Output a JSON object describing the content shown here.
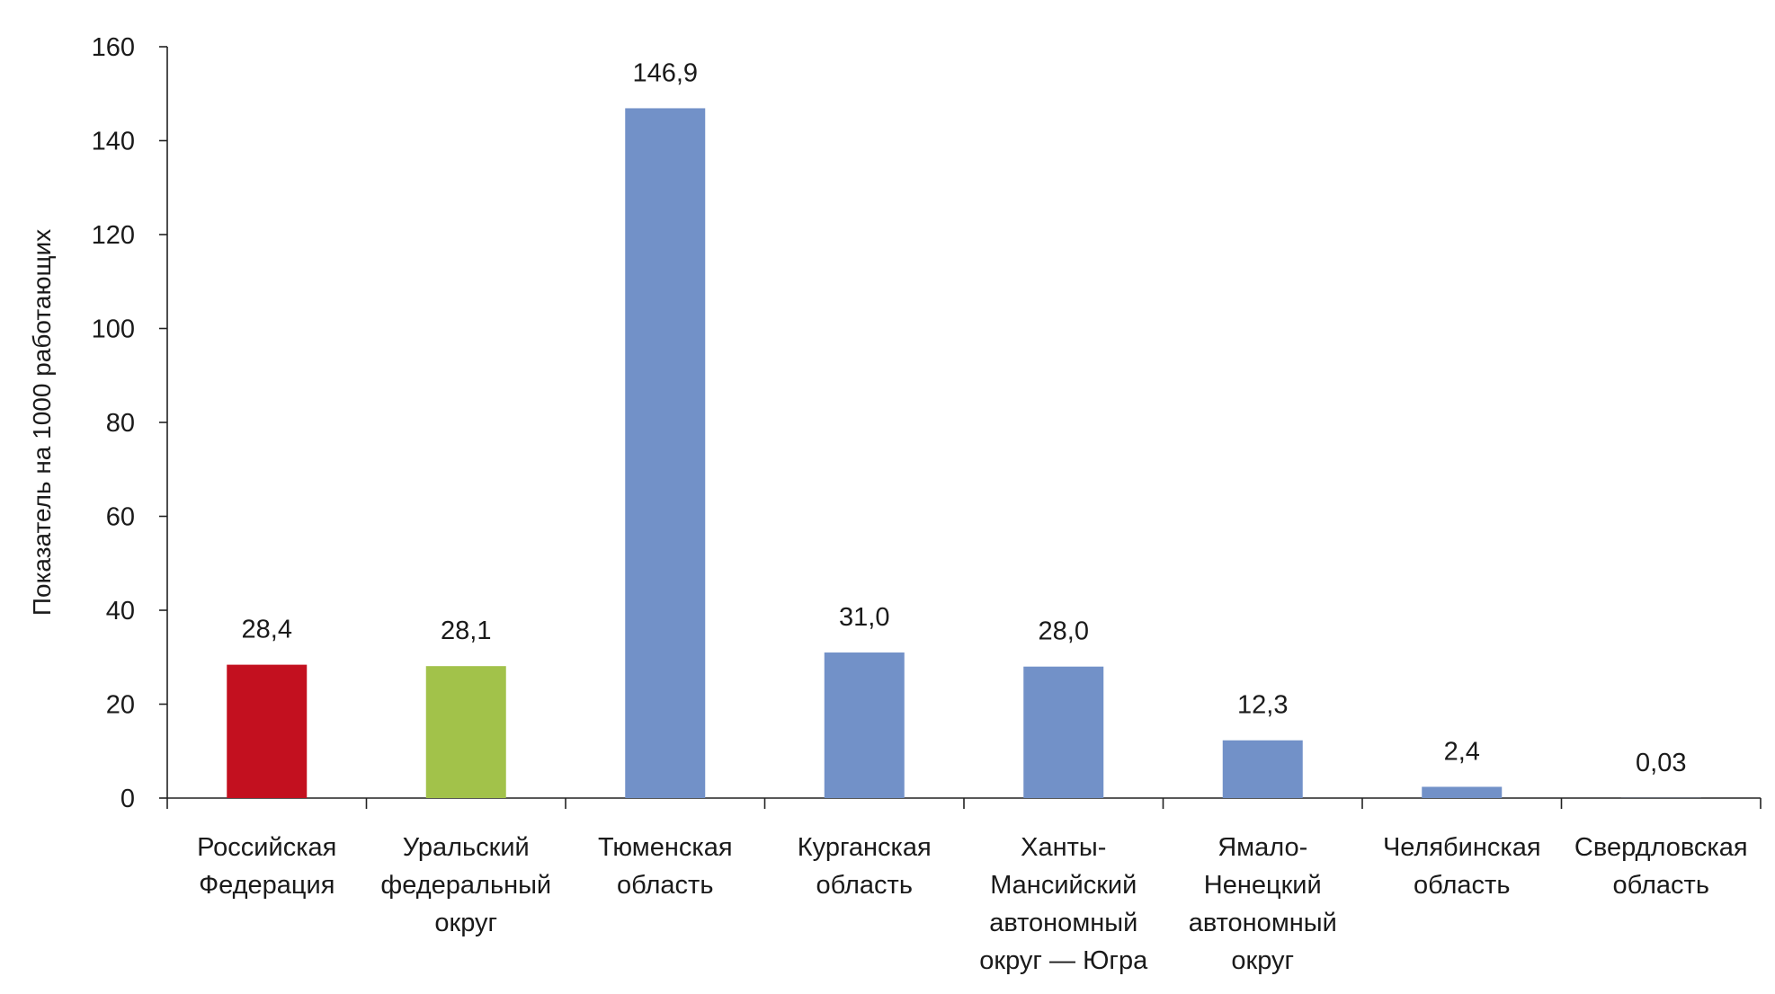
{
  "chart_data": {
    "type": "bar",
    "title": "",
    "xlabel": "",
    "ylabel": "Показатель на 1000 работающих",
    "ylim": [
      0,
      160
    ],
    "yticks": [
      "0",
      "20",
      "40",
      "60",
      "80",
      "100",
      "120",
      "140",
      "160"
    ],
    "grid": false,
    "categories": [
      [
        "Российская",
        "Федерация"
      ],
      [
        "Уральский",
        "федеральный",
        "округ"
      ],
      [
        "Тюменская",
        "область"
      ],
      [
        "Курганская",
        "область"
      ],
      [
        "Ханты-",
        "Мансийский",
        "автономный",
        "округ — Югра"
      ],
      [
        "Ямало-",
        "Ненецкий",
        "автономный",
        "округ"
      ],
      [
        "Челябинская",
        "область"
      ],
      [
        "Свердловская",
        "область"
      ]
    ],
    "values": [
      28.4,
      28.1,
      146.9,
      31.0,
      28.0,
      12.3,
      2.4,
      0.03
    ],
    "value_labels": [
      "28,4",
      "28,1",
      "146,9",
      "31,0",
      "28,0",
      "12,3",
      "2,4",
      "0,03"
    ],
    "colors": [
      "#c3101f",
      "#a2c24a",
      "#7291c8",
      "#7291c8",
      "#7291c8",
      "#7291c8",
      "#7291c8",
      "#7291c8"
    ]
  }
}
